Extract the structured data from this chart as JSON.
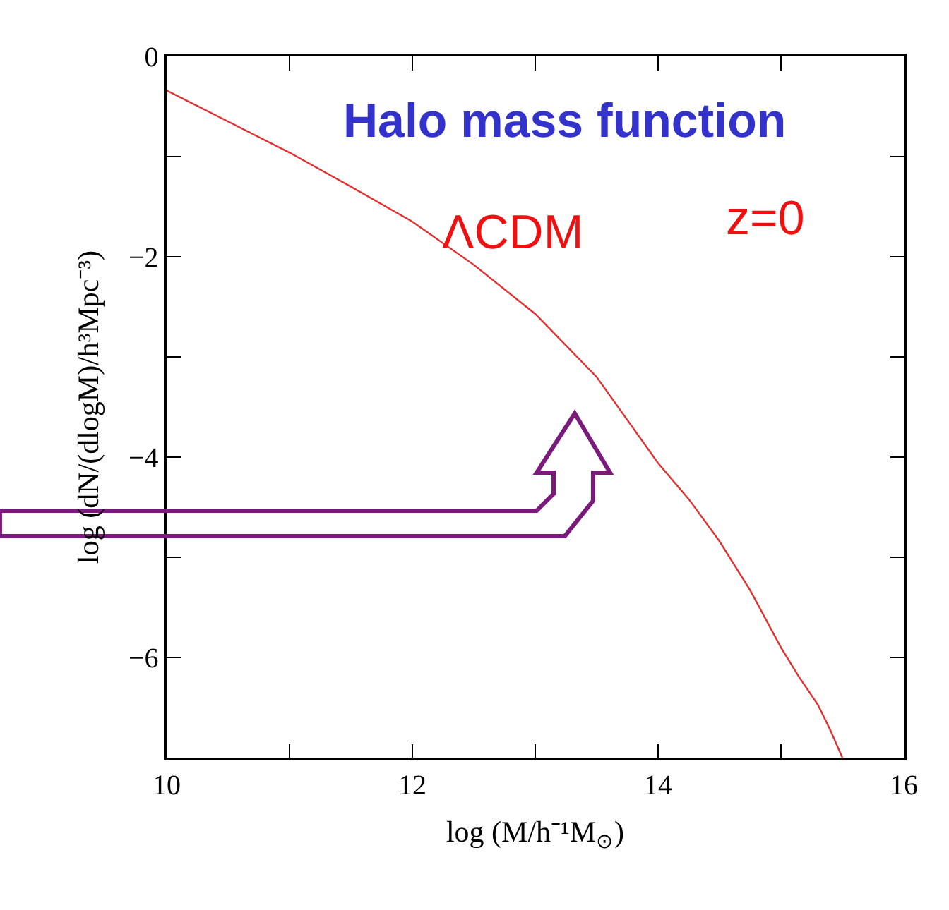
{
  "chart_data": {
    "type": "line",
    "xlabel": "log (M/h⁻¹M$_{⊙}$)",
    "ylabel": "log (dN/(dlogM)/h³Mpc⁻³)",
    "annotations": [
      "Halo mass function",
      "ΛCDM",
      "z=0"
    ],
    "series": [
      {
        "color": "#e03030",
        "x": [
          10,
          10.5,
          11,
          11.5,
          12,
          12.5,
          13,
          13.5,
          14,
          14.25,
          14.5,
          14.75,
          15,
          15.15,
          15.3,
          15.4,
          15.5
        ],
        "values": [
          -0.34,
          -0.65,
          -0.96,
          -1.3,
          -1.65,
          -2.08,
          -2.57,
          -3.2,
          -4.06,
          -4.42,
          -4.84,
          -5.33,
          -5.9,
          -6.2,
          -6.47,
          -6.72,
          -7.0
        ]
      }
    ],
    "xlim": [
      10,
      16
    ],
    "ylim": [
      -7,
      0
    ],
    "xticks": [
      10,
      {
        "value": 11,
        "label": null
      },
      12,
      {
        "value": 13,
        "label": null
      },
      14,
      {
        "value": 15,
        "label": null
      },
      16
    ],
    "yticks": [
      0,
      {
        "value": -1,
        "label": null
      },
      {
        "value": -2,
        "label": "−2"
      },
      {
        "value": -3,
        "label": null
      },
      {
        "value": -4,
        "label": "−4"
      },
      {
        "value": -5,
        "label": null
      },
      {
        "value": -6,
        "label": "−6"
      },
      {
        "value": -7,
        "label": null
      }
    ],
    "legend": false,
    "marker": "none",
    "line_style": "solid"
  }
}
